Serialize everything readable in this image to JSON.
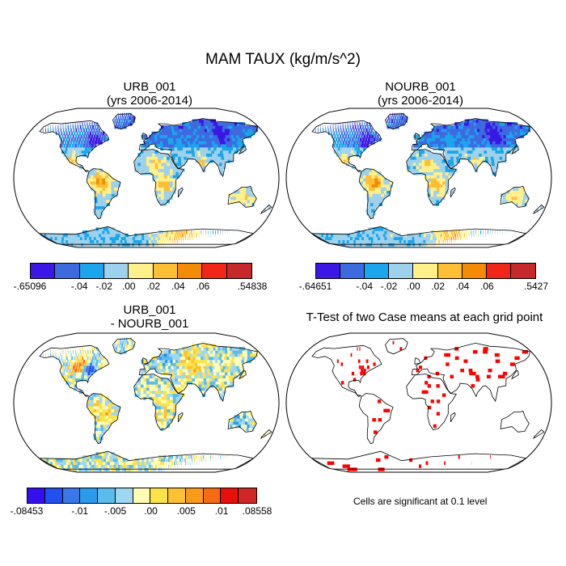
{
  "figure": {
    "title": "MAM TAUX (kg/m/s^2)"
  },
  "panels": [
    {
      "title_line1": "URB_001",
      "title_line2": "(yrs 2006-2014)"
    },
    {
      "title_line1": "NOURB_001",
      "title_line2": "(yrs 2006-2014)"
    },
    {
      "title_line1": "URB_001",
      "title_line2": "- NOURB_001"
    },
    {
      "title_line1": "T-Test of two Case means at each grid point"
    }
  ],
  "colorbars": [
    {
      "colors": [
        "#3b17e6",
        "#3e6ae0",
        "#1aa5ec",
        "#9dd1ec",
        "#fff089",
        "#fdbf35",
        "#f38b07",
        "#ef2618",
        "#c6292b"
      ],
      "labels": [
        "-.65096",
        "-.04",
        "-.02",
        ".00",
        ".02",
        ".04",
        ".06",
        ".54838"
      ],
      "label_at": [
        0,
        2,
        3,
        4,
        5,
        6,
        7,
        9
      ]
    },
    {
      "colors": [
        "#3b17e6",
        "#3e6ae0",
        "#1aa5ec",
        "#9dd1ec",
        "#fff089",
        "#fdbf35",
        "#f38b07",
        "#ef2618",
        "#c6292b"
      ],
      "labels": [
        "-.64651",
        "-.04",
        "-.02",
        ".00",
        ".02",
        ".04",
        ".06",
        ".5427"
      ],
      "label_at": [
        0,
        2,
        3,
        4,
        5,
        6,
        7,
        9
      ]
    },
    {
      "colors": [
        "#3311ee",
        "#2050f0",
        "#3a78e8",
        "#2a9bea",
        "#5abbed",
        "#9fd7f3",
        "#fffcb4",
        "#fde34a",
        "#fcc231",
        "#f89b19",
        "#f56a12",
        "#e8100d",
        "#d02626"
      ],
      "labels": [
        "-.08453",
        "-.01",
        "-.005",
        ".00",
        ".005",
        ".01",
        ".08558"
      ],
      "label_at": [
        0,
        3,
        5,
        7,
        9,
        11,
        13
      ]
    }
  ],
  "significance_note": "Cells are significant at 0.1 level"
}
